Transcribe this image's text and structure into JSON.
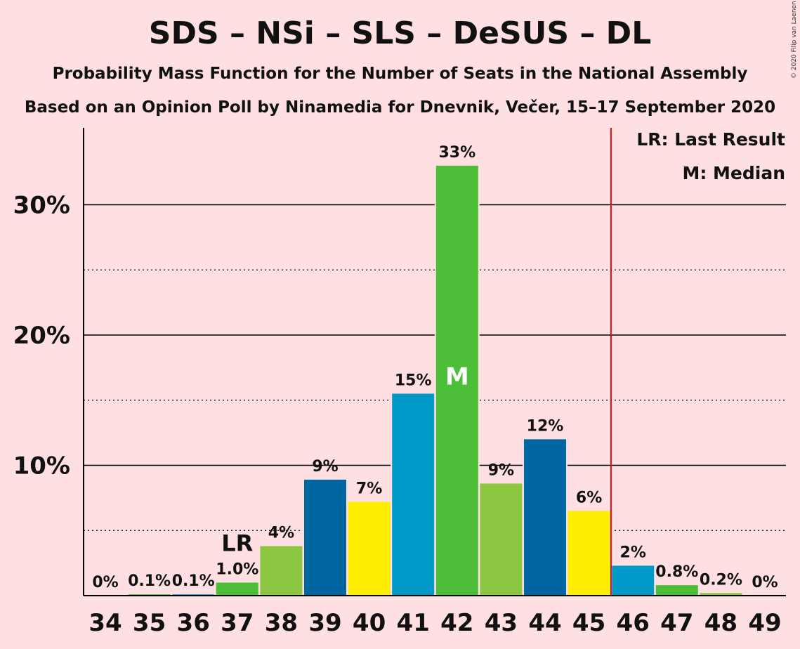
{
  "title": "SDS – NSi – SLS – DeSUS – DL",
  "subtitle_line1": "Probability Mass Function for the Number of Seats in the National Assembly",
  "subtitle_line2": "Based on an Opinion Poll by Ninamedia for Dnevnik, Večer, 15–17 September 2020",
  "copyright": "© 2020 Filip van Laenen",
  "legend": {
    "last_result": "LR: Last Result",
    "median": "M: Median"
  },
  "colors": {
    "background": "#FFE0E2",
    "palette": [
      "#0099C8",
      "#4DBE38",
      "#8DC640",
      "#0066A1",
      "#FFEE00"
    ],
    "majority_line": "#E30613"
  },
  "chart_data": {
    "type": "bar",
    "categories": [
      "34",
      "35",
      "36",
      "37",
      "38",
      "39",
      "40",
      "41",
      "42",
      "43",
      "44",
      "45",
      "46",
      "47",
      "48",
      "49"
    ],
    "values": [
      0,
      0.1,
      0.1,
      1.0,
      3.8,
      8.9,
      7.2,
      15.5,
      33.0,
      8.6,
      12.0,
      6.5,
      2.3,
      0.8,
      0.2,
      0
    ],
    "labels": [
      "0%",
      "0.1%",
      "0.1%",
      "1.0%",
      "4%",
      "9%",
      "7%",
      "15%",
      "33%",
      "9%",
      "12%",
      "6%",
      "2%",
      "0.8%",
      "0.2%",
      "0%"
    ],
    "color_index": [
      0,
      1,
      0,
      1,
      2,
      3,
      4,
      0,
      1,
      2,
      3,
      4,
      0,
      1,
      2,
      3
    ],
    "y_ticks": [
      10,
      20,
      30
    ],
    "y_tick_labels": [
      "10%",
      "20%",
      "30%"
    ],
    "minor_gridlines": [
      5,
      15,
      25
    ],
    "ylim": [
      0,
      35.8
    ],
    "last_result": {
      "seat": "37",
      "label": "LR"
    },
    "median": {
      "seat": "42",
      "label": "M"
    },
    "majority_threshold_after_seat": "45",
    "legend_position": "top-right"
  }
}
